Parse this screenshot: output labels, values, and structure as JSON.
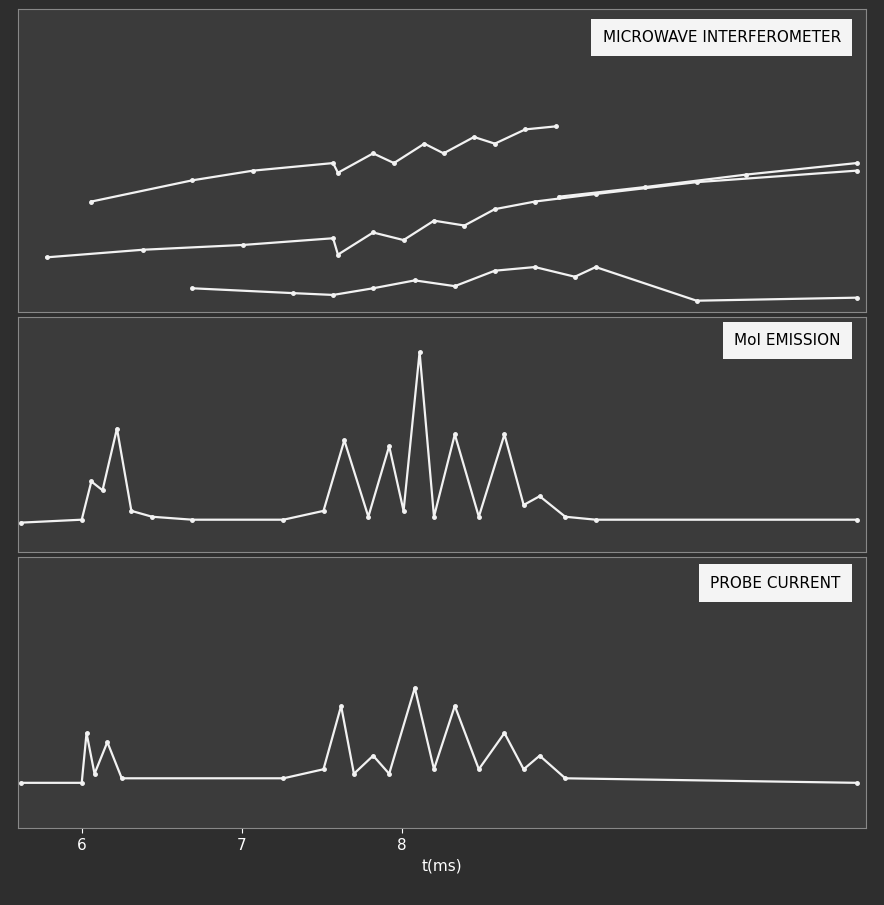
{
  "chart_data": [
    {
      "type": "line",
      "title": "MICROWAVE INTERFEROMETER",
      "color": "#f2f2f2",
      "marker": "o",
      "line_style": "solid",
      "xlim": [
        5.6,
        10.9
      ],
      "ylim": [
        0,
        10
      ],
      "tick_labels": false,
      "series": [
        {
          "x": [
            6.06,
            6.69,
            7.07,
            7.57,
            7.6,
            7.82,
            7.95,
            8.14,
            8.26,
            8.45,
            8.58,
            8.77,
            8.96,
            8.97,
            8.98,
            9.52,
            10.15,
            10.84
          ],
          "values": [
            3.65,
            4.35,
            4.67,
            4.92,
            4.6,
            5.24,
            4.92,
            5.56,
            5.24,
            5.78,
            5.56,
            6.03,
            6.13,
            null,
            3.81,
            4.13,
            4.54,
            4.92
          ]
        },
        {
          "x": [
            5.78,
            6.38,
            7.01,
            7.57,
            7.6,
            7.82,
            8.01,
            8.2,
            8.39,
            8.58,
            8.83,
            9.21,
            9.84,
            10.84
          ],
          "values": [
            1.81,
            2.06,
            2.22,
            2.44,
            1.9,
            2.63,
            2.38,
            3.02,
            2.86,
            3.4,
            3.65,
            3.9,
            4.29,
            4.67
          ]
        },
        {
          "x": [
            6.69,
            7.32,
            7.57,
            7.82,
            8.08,
            8.33,
            8.58,
            8.83,
            9.08,
            9.21,
            9.84,
            10.84
          ],
          "values": [
            0.79,
            0.63,
            0.57,
            0.79,
            1.05,
            0.86,
            1.37,
            1.49,
            1.17,
            1.49,
            0.38,
            0.48
          ]
        }
      ]
    },
    {
      "type": "line",
      "title": "MoI EMISSION",
      "color": "#f2f2f2",
      "marker": "o",
      "line_style": "solid",
      "xlim": [
        5.6,
        10.9
      ],
      "ylim": [
        -1,
        7
      ],
      "tick_labels": false,
      "series": [
        {
          "x": [
            5.62,
            6.0,
            6.06,
            6.13,
            6.22,
            6.31,
            6.44,
            6.69,
            7.26,
            7.51,
            7.64,
            7.79,
            7.92,
            8.01,
            8.11,
            8.2,
            8.33,
            8.48,
            8.64,
            8.76,
            8.86,
            9.02,
            9.21,
            10.84
          ],
          "values": [
            0,
            0.1,
            1.4,
            1.1,
            3.2,
            0.4,
            0.2,
            0.1,
            0.1,
            0.4,
            2.8,
            0.2,
            2.6,
            0.4,
            5.8,
            0.2,
            3.0,
            0.2,
            3.0,
            0.6,
            0.9,
            0.2,
            0.1,
            0.1
          ]
        }
      ]
    },
    {
      "type": "line",
      "title": "PROBE CURRENT",
      "color": "#f2f2f2",
      "marker": "o",
      "line_style": "solid",
      "xlim": [
        5.6,
        10.9
      ],
      "ylim": [
        -1,
        5
      ],
      "tick_labels": "x",
      "xticks": [
        6,
        7,
        8
      ],
      "x_label": "t(ms)",
      "series": [
        {
          "x": [
            5.62,
            6.0,
            6.03,
            6.08,
            6.16,
            6.25,
            7.26,
            7.51,
            7.62,
            7.7,
            7.82,
            7.92,
            8.08,
            8.2,
            8.33,
            8.48,
            8.64,
            8.76,
            8.86,
            9.02,
            10.84
          ],
          "values": [
            0,
            0,
            1.1,
            0.2,
            0.9,
            0.1,
            0.1,
            0.3,
            1.7,
            0.2,
            0.6,
            0.2,
            2.1,
            0.3,
            1.7,
            0.3,
            1.1,
            0.3,
            0.6,
            0.1,
            0
          ]
        }
      ]
    }
  ]
}
